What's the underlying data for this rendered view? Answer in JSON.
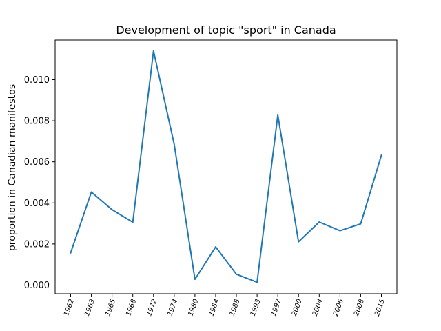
{
  "chart_data": {
    "type": "line",
    "title": "Development of topic \"sport\" in Canada",
    "xlabel": "",
    "ylabel": "proportion in Canadian manifestos",
    "categories": [
      "1962",
      "1963",
      "1965",
      "1968",
      "1972",
      "1974",
      "1980",
      "1984",
      "1988",
      "1993",
      "1997",
      "2000",
      "2004",
      "2006",
      "2008",
      "2015"
    ],
    "series": [
      {
        "values": [
          0.00157,
          0.00453,
          0.00367,
          0.00306,
          0.0114,
          0.00685,
          0.00028,
          0.00186,
          0.00053,
          0.00014,
          0.00828,
          0.00211,
          0.00307,
          0.00265,
          0.00298,
          0.00632
        ],
        "color": "#1f77b4"
      }
    ],
    "ylim": [
      -0.00042,
      0.01193
    ],
    "yticks": [
      0.0,
      0.002,
      0.004,
      0.006,
      0.008,
      0.01
    ],
    "ytick_labels": [
      "0.000",
      "0.002",
      "0.004",
      "0.006",
      "0.008",
      "0.010"
    ],
    "grid": false,
    "legend": "none"
  }
}
